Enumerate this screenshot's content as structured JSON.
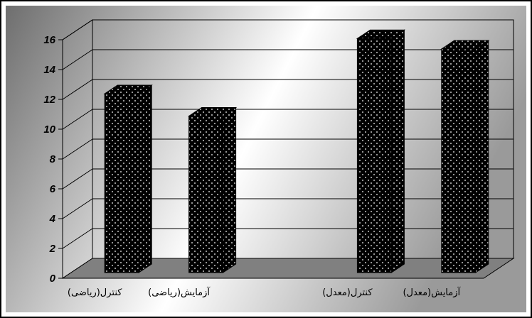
{
  "chart_data": {
    "type": "bar",
    "title": "",
    "xlabel": "",
    "ylabel": "",
    "categories": [
      "کنترل(ریاضی)",
      "آزمایش(ریاضی)",
      "کنترل(معدل)",
      "آزمایش(معدل)"
    ],
    "values": [
      12,
      10.5,
      15.7,
      15
    ],
    "category_slots": [
      0,
      1,
      3,
      4
    ],
    "ylim": [
      0,
      16
    ],
    "yticks": [
      "0",
      "2",
      "4",
      "6",
      "8",
      "10",
      "12",
      "14",
      "16"
    ],
    "grid": true,
    "legend": "none",
    "bar_pattern": "black-with-white-dots",
    "colors": {
      "bar": "#000000",
      "floor": "#808080",
      "background_dark": "#6e6e6e",
      "background_light": "#ffffff"
    }
  }
}
